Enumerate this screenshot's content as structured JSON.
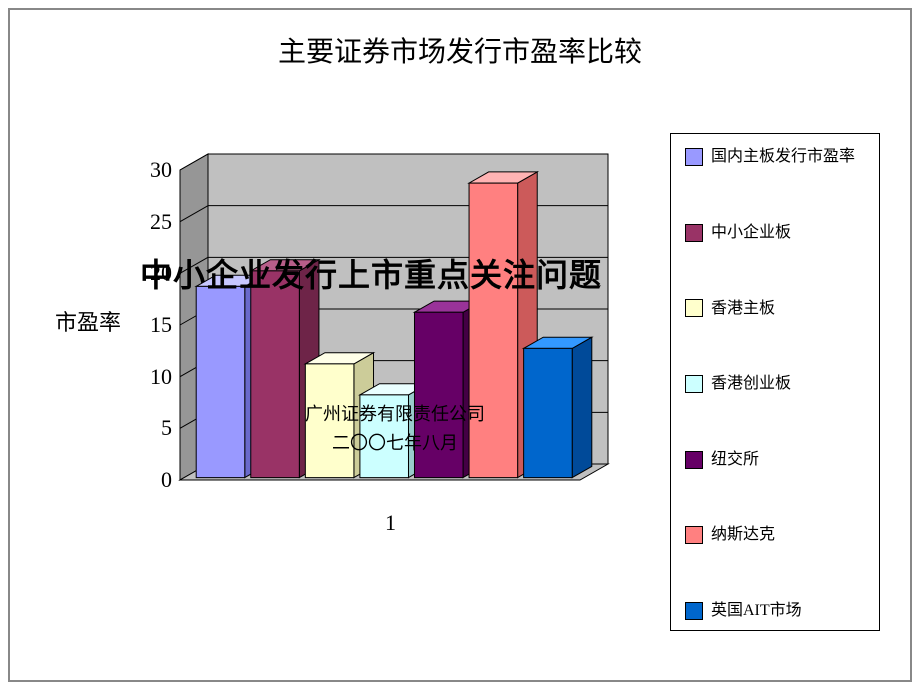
{
  "chart": {
    "type": "3d-bar",
    "title": "主要证券市场发行市盈率比较",
    "ylabel": "市盈率",
    "x_category_label": "1",
    "ylim": [
      0,
      30
    ],
    "ytick_step": 5,
    "yticks": [
      0,
      5,
      10,
      15,
      20,
      25,
      30
    ],
    "title_fontsize": 28,
    "label_fontsize": 22,
    "tick_fontsize": 22,
    "background_color": "#ffffff",
    "plot_floor_color": "#c0c0c0",
    "plot_back_wall_color": "#c0c0c0",
    "plot_side_wall_color": "#969696",
    "gridline_color": "#000000",
    "depth_dx": 28,
    "depth_dy": -16,
    "bar_gap": 6,
    "series": [
      {
        "name": "国内主板发行市盈率",
        "value": 18.5,
        "face_color": "#9999ff",
        "top_color": "#c7c7ff",
        "side_color": "#6a6acc"
      },
      {
        "name": "中小企业板",
        "value": 20.0,
        "face_color": "#993366",
        "top_color": "#b85e89",
        "side_color": "#6e2448"
      },
      {
        "name": "香港主板",
        "value": 11.0,
        "face_color": "#ffffcc",
        "top_color": "#ffffe8",
        "side_color": "#cccc99"
      },
      {
        "name": "香港创业板",
        "value": 8.0,
        "face_color": "#ccffff",
        "top_color": "#eaffff",
        "side_color": "#99cccc"
      },
      {
        "name": "纽交所",
        "value": 16.0,
        "face_color": "#660066",
        "top_color": "#993399",
        "side_color": "#440044"
      },
      {
        "name": "纳斯达克",
        "value": 28.5,
        "face_color": "#ff8080",
        "top_color": "#ffb3b3",
        "side_color": "#cc5a5a"
      },
      {
        "name": "英国AIT市场",
        "value": 12.5,
        "face_color": "#0066cc",
        "top_color": "#3399ff",
        "side_color": "#004a99"
      }
    ]
  },
  "overlay": {
    "title": "中小企业发行上市重点关注问题",
    "subtitle_line1": "广州证券有限责任公司",
    "subtitle_line2": "二〇〇七年八月"
  }
}
